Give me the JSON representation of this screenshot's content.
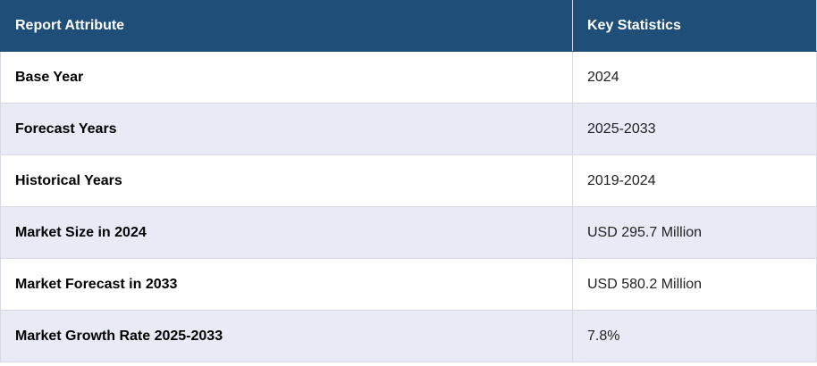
{
  "table": {
    "header": [
      "Report Attribute",
      "Key Statistics"
    ],
    "rows": [
      [
        "Base Year",
        "2024"
      ],
      [
        "Forecast Years",
        "2025-2033"
      ],
      [
        "Historical Years",
        "2019-2024"
      ],
      [
        "Market Size in 2024",
        "USD 295.7 Million"
      ],
      [
        "Market Forecast in 2033",
        "USD 580.2 Million"
      ],
      [
        "Market Growth Rate 2025-2033",
        "7.8%"
      ]
    ]
  }
}
